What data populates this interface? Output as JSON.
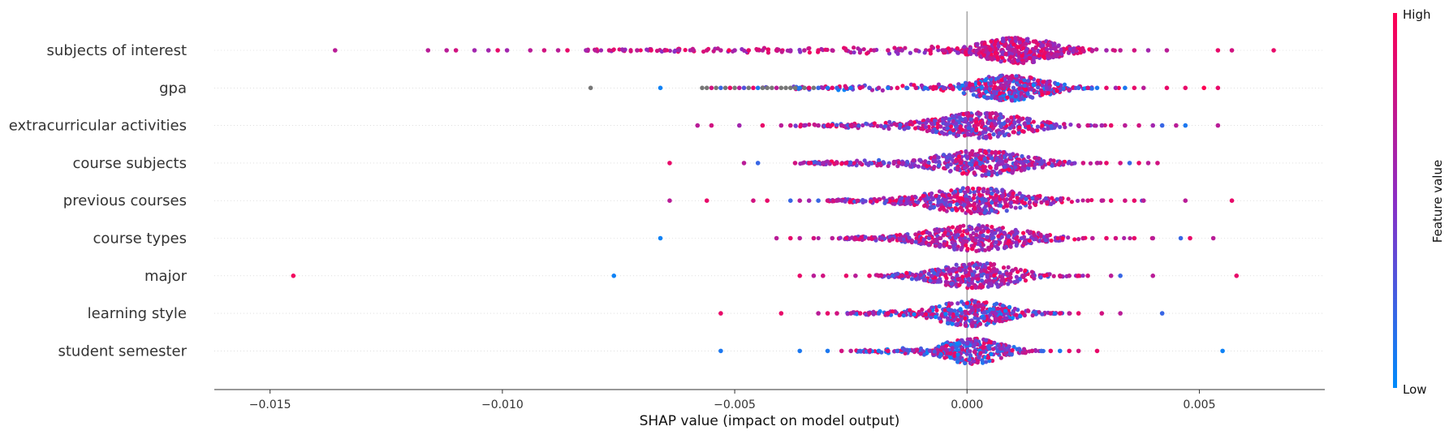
{
  "chart_data": {
    "type": "scatter",
    "subtype": "shap-beeswarm",
    "title": "",
    "xlabel": "SHAP value (impact on model output)",
    "xlim": [
      -0.0162,
      0.0077
    ],
    "xticks": [
      -0.015,
      -0.01,
      -0.005,
      0.0,
      0.005
    ],
    "xtick_labels": [
      "−0.015",
      "−0.010",
      "−0.005",
      "0.000",
      "0.005"
    ],
    "grid": false,
    "colorbar": {
      "label": "Feature value",
      "high_label": "High",
      "low_label": "Low",
      "low_color": "#008bfb",
      "high_color": "#ff0052",
      "missing_color": "#777777"
    },
    "features": [
      {
        "name": "subjects of interest",
        "center": 0.0011,
        "spread": 0.00075,
        "n_core": 430,
        "core_color_range": [
          0.45,
          1.0
        ],
        "outliers": [
          [
            -0.0136,
            0.7
          ],
          [
            -0.0116,
            0.7
          ],
          [
            -0.0112,
            0.7
          ],
          [
            -0.011,
            0.8
          ],
          [
            -0.0106,
            0.6
          ],
          [
            -0.0103,
            0.6
          ],
          [
            -0.0101,
            0.9
          ],
          [
            -0.0099,
            0.6
          ],
          [
            -0.0094,
            0.7
          ],
          [
            -0.0091,
            0.8
          ],
          [
            -0.0088,
            0.7
          ],
          [
            -0.0086,
            0.9
          ],
          [
            -0.0082,
            0.6
          ],
          [
            -0.008,
            0.7
          ],
          [
            -0.0077,
            0.8
          ],
          [
            -0.0074,
            0.6
          ],
          [
            -0.0071,
            0.7
          ],
          [
            -0.0068,
            0.9
          ],
          [
            -0.0065,
            0.8
          ],
          [
            -0.0062,
            0.6
          ],
          [
            -0.0059,
            0.7
          ],
          [
            -0.0056,
            0.8
          ],
          [
            -0.0053,
            0.7
          ],
          [
            -0.005,
            0.6
          ],
          [
            -0.0047,
            0.9
          ],
          [
            -0.0044,
            0.7
          ],
          [
            -0.0041,
            0.8
          ],
          [
            -0.0038,
            0.6
          ],
          [
            -0.0035,
            0.7
          ],
          [
            -0.0032,
            0.9
          ],
          [
            -0.0029,
            0.7
          ],
          [
            -0.0026,
            0.8
          ],
          [
            -0.0023,
            0.6
          ],
          [
            -0.002,
            0.7
          ],
          [
            -0.0017,
            0.8
          ],
          [
            -0.0014,
            0.6
          ],
          [
            -0.0011,
            0.7
          ],
          [
            -0.0008,
            0.9
          ],
          [
            -0.0005,
            0.7
          ],
          [
            0.0023,
            0.6
          ],
          [
            0.0025,
            0.8
          ],
          [
            0.0027,
            0.7
          ],
          [
            0.003,
            0.6
          ],
          [
            0.0033,
            0.7
          ],
          [
            0.0036,
            0.8
          ],
          [
            0.0039,
            0.6
          ],
          [
            0.0043,
            0.7
          ],
          [
            0.0054,
            0.9
          ],
          [
            0.0057,
            0.8
          ],
          [
            0.0066,
            0.9
          ]
        ],
        "n_dense_tail": 120,
        "tail_range": [
          -0.0083,
          -0.0003
        ]
      },
      {
        "name": "gpa",
        "center": 0.0009,
        "spread": 0.00075,
        "n_core": 380,
        "core_color_range": [
          0.0,
          1.0
        ],
        "outliers": [
          [
            -0.0081,
            -1
          ],
          [
            -0.0066,
            0.05
          ],
          [
            -0.0057,
            -1
          ],
          [
            -0.0056,
            -1
          ],
          [
            -0.0055,
            0.8
          ],
          [
            -0.0054,
            -1
          ],
          [
            -0.0053,
            0.2
          ],
          [
            -0.0052,
            -1
          ],
          [
            -0.0051,
            0.9
          ],
          [
            -0.005,
            -1
          ],
          [
            -0.0049,
            0.7
          ],
          [
            -0.0048,
            0.3
          ],
          [
            -0.0047,
            -1
          ],
          [
            -0.0046,
            0.9
          ],
          [
            -0.0045,
            0.1
          ],
          [
            -0.0044,
            -1
          ],
          [
            -0.0043,
            -1
          ],
          [
            -0.0042,
            -1
          ],
          [
            -0.0041,
            0.7
          ],
          [
            -0.004,
            -1
          ],
          [
            -0.0039,
            -1
          ],
          [
            -0.0038,
            -1
          ],
          [
            -0.0037,
            -1
          ],
          [
            -0.0036,
            0.1
          ],
          [
            -0.0035,
            -1
          ],
          [
            -0.0034,
            0.9
          ],
          [
            -0.0033,
            -1
          ],
          [
            -0.0032,
            0.2
          ],
          [
            -0.0031,
            0.6
          ],
          [
            -0.003,
            0.1
          ],
          [
            -0.0029,
            0.9
          ],
          [
            -0.0028,
            0.2
          ],
          [
            -0.0026,
            0.8
          ],
          [
            -0.0025,
            0.1
          ],
          [
            -0.0023,
            0.9
          ],
          [
            -0.0021,
            0.3
          ],
          [
            -0.0019,
            0.7
          ],
          [
            -0.0017,
            0.1
          ],
          [
            -0.0015,
            0.9
          ],
          [
            -0.0013,
            0.2
          ],
          [
            -0.0011,
            0.8
          ],
          [
            -0.0009,
            0.1
          ],
          [
            -0.0007,
            0.9
          ],
          [
            -0.0005,
            0.4
          ],
          [
            0.0024,
            0.2
          ],
          [
            0.0026,
            0.8
          ],
          [
            0.0028,
            0.1
          ],
          [
            0.003,
            0.9
          ],
          [
            0.0032,
            0.6
          ],
          [
            0.0034,
            0.1
          ],
          [
            0.0036,
            0.9
          ],
          [
            0.0038,
            0.7
          ],
          [
            0.0043,
            0.9
          ],
          [
            0.0047,
            0.9
          ],
          [
            0.0051,
            1.0
          ],
          [
            0.0054,
            0.9
          ]
        ],
        "n_dense_tail": 40,
        "tail_range": [
          -0.0045,
          -0.0004
        ]
      },
      {
        "name": "extracurricular activities",
        "center": 0.0003,
        "spread": 0.0009,
        "n_core": 400,
        "core_color_range": [
          0.2,
          1.0
        ],
        "outliers": [
          [
            -0.0058,
            0.7
          ],
          [
            -0.0055,
            0.8
          ],
          [
            -0.0049,
            0.6
          ],
          [
            -0.0044,
            0.9
          ],
          [
            -0.004,
            0.7
          ],
          [
            -0.0038,
            0.8
          ],
          [
            -0.0035,
            0.6
          ],
          [
            -0.0032,
            0.7
          ],
          [
            -0.003,
            0.9
          ],
          [
            -0.0027,
            0.7
          ],
          [
            -0.0025,
            0.8
          ],
          [
            0.0024,
            0.7
          ],
          [
            0.0026,
            0.8
          ],
          [
            0.0029,
            0.6
          ],
          [
            0.0031,
            0.9
          ],
          [
            0.0034,
            0.7
          ],
          [
            0.0037,
            0.8
          ],
          [
            0.004,
            0.6
          ],
          [
            0.0042,
            0.2
          ],
          [
            0.0045,
            0.7
          ],
          [
            0.0047,
            0.1
          ],
          [
            0.0054,
            0.7
          ]
        ],
        "n_dense_tail": 60,
        "tail_range": [
          -0.0037,
          -0.0012
        ]
      },
      {
        "name": "course subjects",
        "center": 0.0003,
        "spread": 0.0009,
        "n_core": 380,
        "core_color_range": [
          0.2,
          1.0
        ],
        "outliers": [
          [
            -0.0064,
            0.9
          ],
          [
            -0.0048,
            0.7
          ],
          [
            -0.0045,
            0.2
          ],
          [
            -0.0037,
            0.8
          ],
          [
            -0.0034,
            0.9
          ],
          [
            -0.0031,
            0.6
          ],
          [
            -0.0028,
            0.8
          ],
          [
            -0.0026,
            0.9
          ],
          [
            -0.0023,
            0.7
          ],
          [
            0.0025,
            0.8
          ],
          [
            0.0028,
            0.7
          ],
          [
            0.003,
            0.9
          ],
          [
            0.0033,
            0.8
          ],
          [
            0.0035,
            0.2
          ],
          [
            0.0037,
            0.9
          ],
          [
            0.0039,
            0.7
          ],
          [
            0.0041,
            0.8
          ]
        ],
        "n_dense_tail": 70,
        "tail_range": [
          -0.0036,
          -0.0011
        ]
      },
      {
        "name": "previous courses",
        "center": 0.0002,
        "spread": 0.001,
        "n_core": 390,
        "core_color_range": [
          0.2,
          1.0
        ],
        "outliers": [
          [
            -0.0064,
            0.7
          ],
          [
            -0.0056,
            0.9
          ],
          [
            -0.0046,
            0.8
          ],
          [
            -0.0043,
            0.9
          ],
          [
            -0.0038,
            0.2
          ],
          [
            -0.0036,
            0.7
          ],
          [
            -0.0034,
            0.6
          ],
          [
            -0.0032,
            0.2
          ],
          [
            -0.003,
            0.8
          ],
          [
            -0.0028,
            0.7
          ],
          [
            0.0026,
            0.8
          ],
          [
            0.0029,
            0.7
          ],
          [
            0.0031,
            0.9
          ],
          [
            0.0034,
            0.8
          ],
          [
            0.0036,
            0.9
          ],
          [
            0.0038,
            0.7
          ],
          [
            0.0047,
            0.7
          ],
          [
            0.0057,
            0.9
          ]
        ],
        "n_dense_tail": 55,
        "tail_range": [
          -0.003,
          -0.0012
        ]
      },
      {
        "name": "course types",
        "center": 0.0002,
        "spread": 0.001,
        "n_core": 390,
        "core_color_range": [
          0.3,
          1.0
        ],
        "outliers": [
          [
            -0.0066,
            0.05
          ],
          [
            -0.0041,
            0.7
          ],
          [
            -0.0038,
            0.9
          ],
          [
            -0.0036,
            0.7
          ],
          [
            -0.0033,
            0.8
          ],
          [
            -0.0029,
            0.7
          ],
          [
            -0.0026,
            0.9
          ],
          [
            -0.0024,
            0.8
          ],
          [
            0.0025,
            0.8
          ],
          [
            0.0027,
            0.7
          ],
          [
            0.003,
            0.9
          ],
          [
            0.0032,
            0.8
          ],
          [
            0.0036,
            0.9
          ],
          [
            0.004,
            0.7
          ],
          [
            0.0046,
            0.2
          ],
          [
            0.0048,
            0.9
          ],
          [
            0.0053,
            0.7
          ]
        ],
        "n_dense_tail": 60,
        "tail_range": [
          -0.0028,
          -0.001
        ]
      },
      {
        "name": "major",
        "center": 0.0002,
        "spread": 0.0008,
        "n_core": 330,
        "core_color_range": [
          0.2,
          1.0
        ],
        "outliers": [
          [
            -0.0145,
            0.95
          ],
          [
            -0.0076,
            0.05
          ],
          [
            -0.0036,
            0.9
          ],
          [
            -0.0033,
            0.7
          ],
          [
            -0.0031,
            0.8
          ],
          [
            -0.0026,
            0.9
          ],
          [
            -0.0024,
            0.7
          ],
          [
            -0.0021,
            0.9
          ],
          [
            -0.0019,
            0.8
          ],
          [
            -0.0016,
            0.2
          ],
          [
            -0.0014,
            0.8
          ],
          [
            0.002,
            0.8
          ],
          [
            0.0022,
            0.7
          ],
          [
            0.0024,
            0.9
          ],
          [
            0.0026,
            0.8
          ],
          [
            0.0031,
            0.7
          ],
          [
            0.0033,
            0.2
          ],
          [
            0.004,
            0.7
          ],
          [
            0.0058,
            0.9
          ]
        ],
        "n_dense_tail": 30,
        "tail_range": [
          -0.002,
          -0.0009
        ]
      },
      {
        "name": "learning style",
        "center": 0.0001,
        "spread": 0.0007,
        "n_core": 330,
        "core_color_range": [
          0.0,
          1.0
        ],
        "outliers": [
          [
            -0.0053,
            0.9
          ],
          [
            -0.004,
            0.9
          ],
          [
            -0.0032,
            0.7
          ],
          [
            -0.003,
            0.9
          ],
          [
            -0.0028,
            0.8
          ],
          [
            -0.0025,
            0.7
          ],
          [
            -0.0023,
            0.9
          ],
          [
            -0.0021,
            0.8
          ],
          [
            -0.0019,
            0.2
          ],
          [
            -0.0017,
            0.9
          ],
          [
            0.0018,
            0.8
          ],
          [
            0.002,
            0.9
          ],
          [
            0.0022,
            0.7
          ],
          [
            0.0024,
            0.9
          ],
          [
            0.0029,
            0.8
          ],
          [
            0.0033,
            0.7
          ],
          [
            0.0042,
            0.2
          ]
        ],
        "n_dense_tail": 45,
        "tail_range": [
          -0.0026,
          -0.0008
        ]
      },
      {
        "name": "student semester",
        "center": 0.0001,
        "spread": 0.0006,
        "n_core": 300,
        "core_color_range": [
          0.0,
          0.95
        ],
        "outliers": [
          [
            -0.0053,
            0.1
          ],
          [
            -0.0036,
            0.1
          ],
          [
            -0.003,
            0.1
          ],
          [
            -0.0027,
            0.8
          ],
          [
            -0.0025,
            0.7
          ],
          [
            -0.0023,
            0.2
          ],
          [
            -0.0021,
            0.8
          ],
          [
            -0.0019,
            0.1
          ],
          [
            -0.0017,
            0.9
          ],
          [
            -0.0015,
            0.2
          ],
          [
            0.0014,
            0.8
          ],
          [
            0.0016,
            0.2
          ],
          [
            0.0018,
            0.9
          ],
          [
            0.002,
            0.1
          ],
          [
            0.0022,
            0.9
          ],
          [
            0.0024,
            0.8
          ],
          [
            0.0028,
            0.9
          ],
          [
            0.0055,
            0.05
          ]
        ],
        "n_dense_tail": 40,
        "tail_range": [
          -0.0024,
          -0.0008
        ]
      }
    ]
  }
}
